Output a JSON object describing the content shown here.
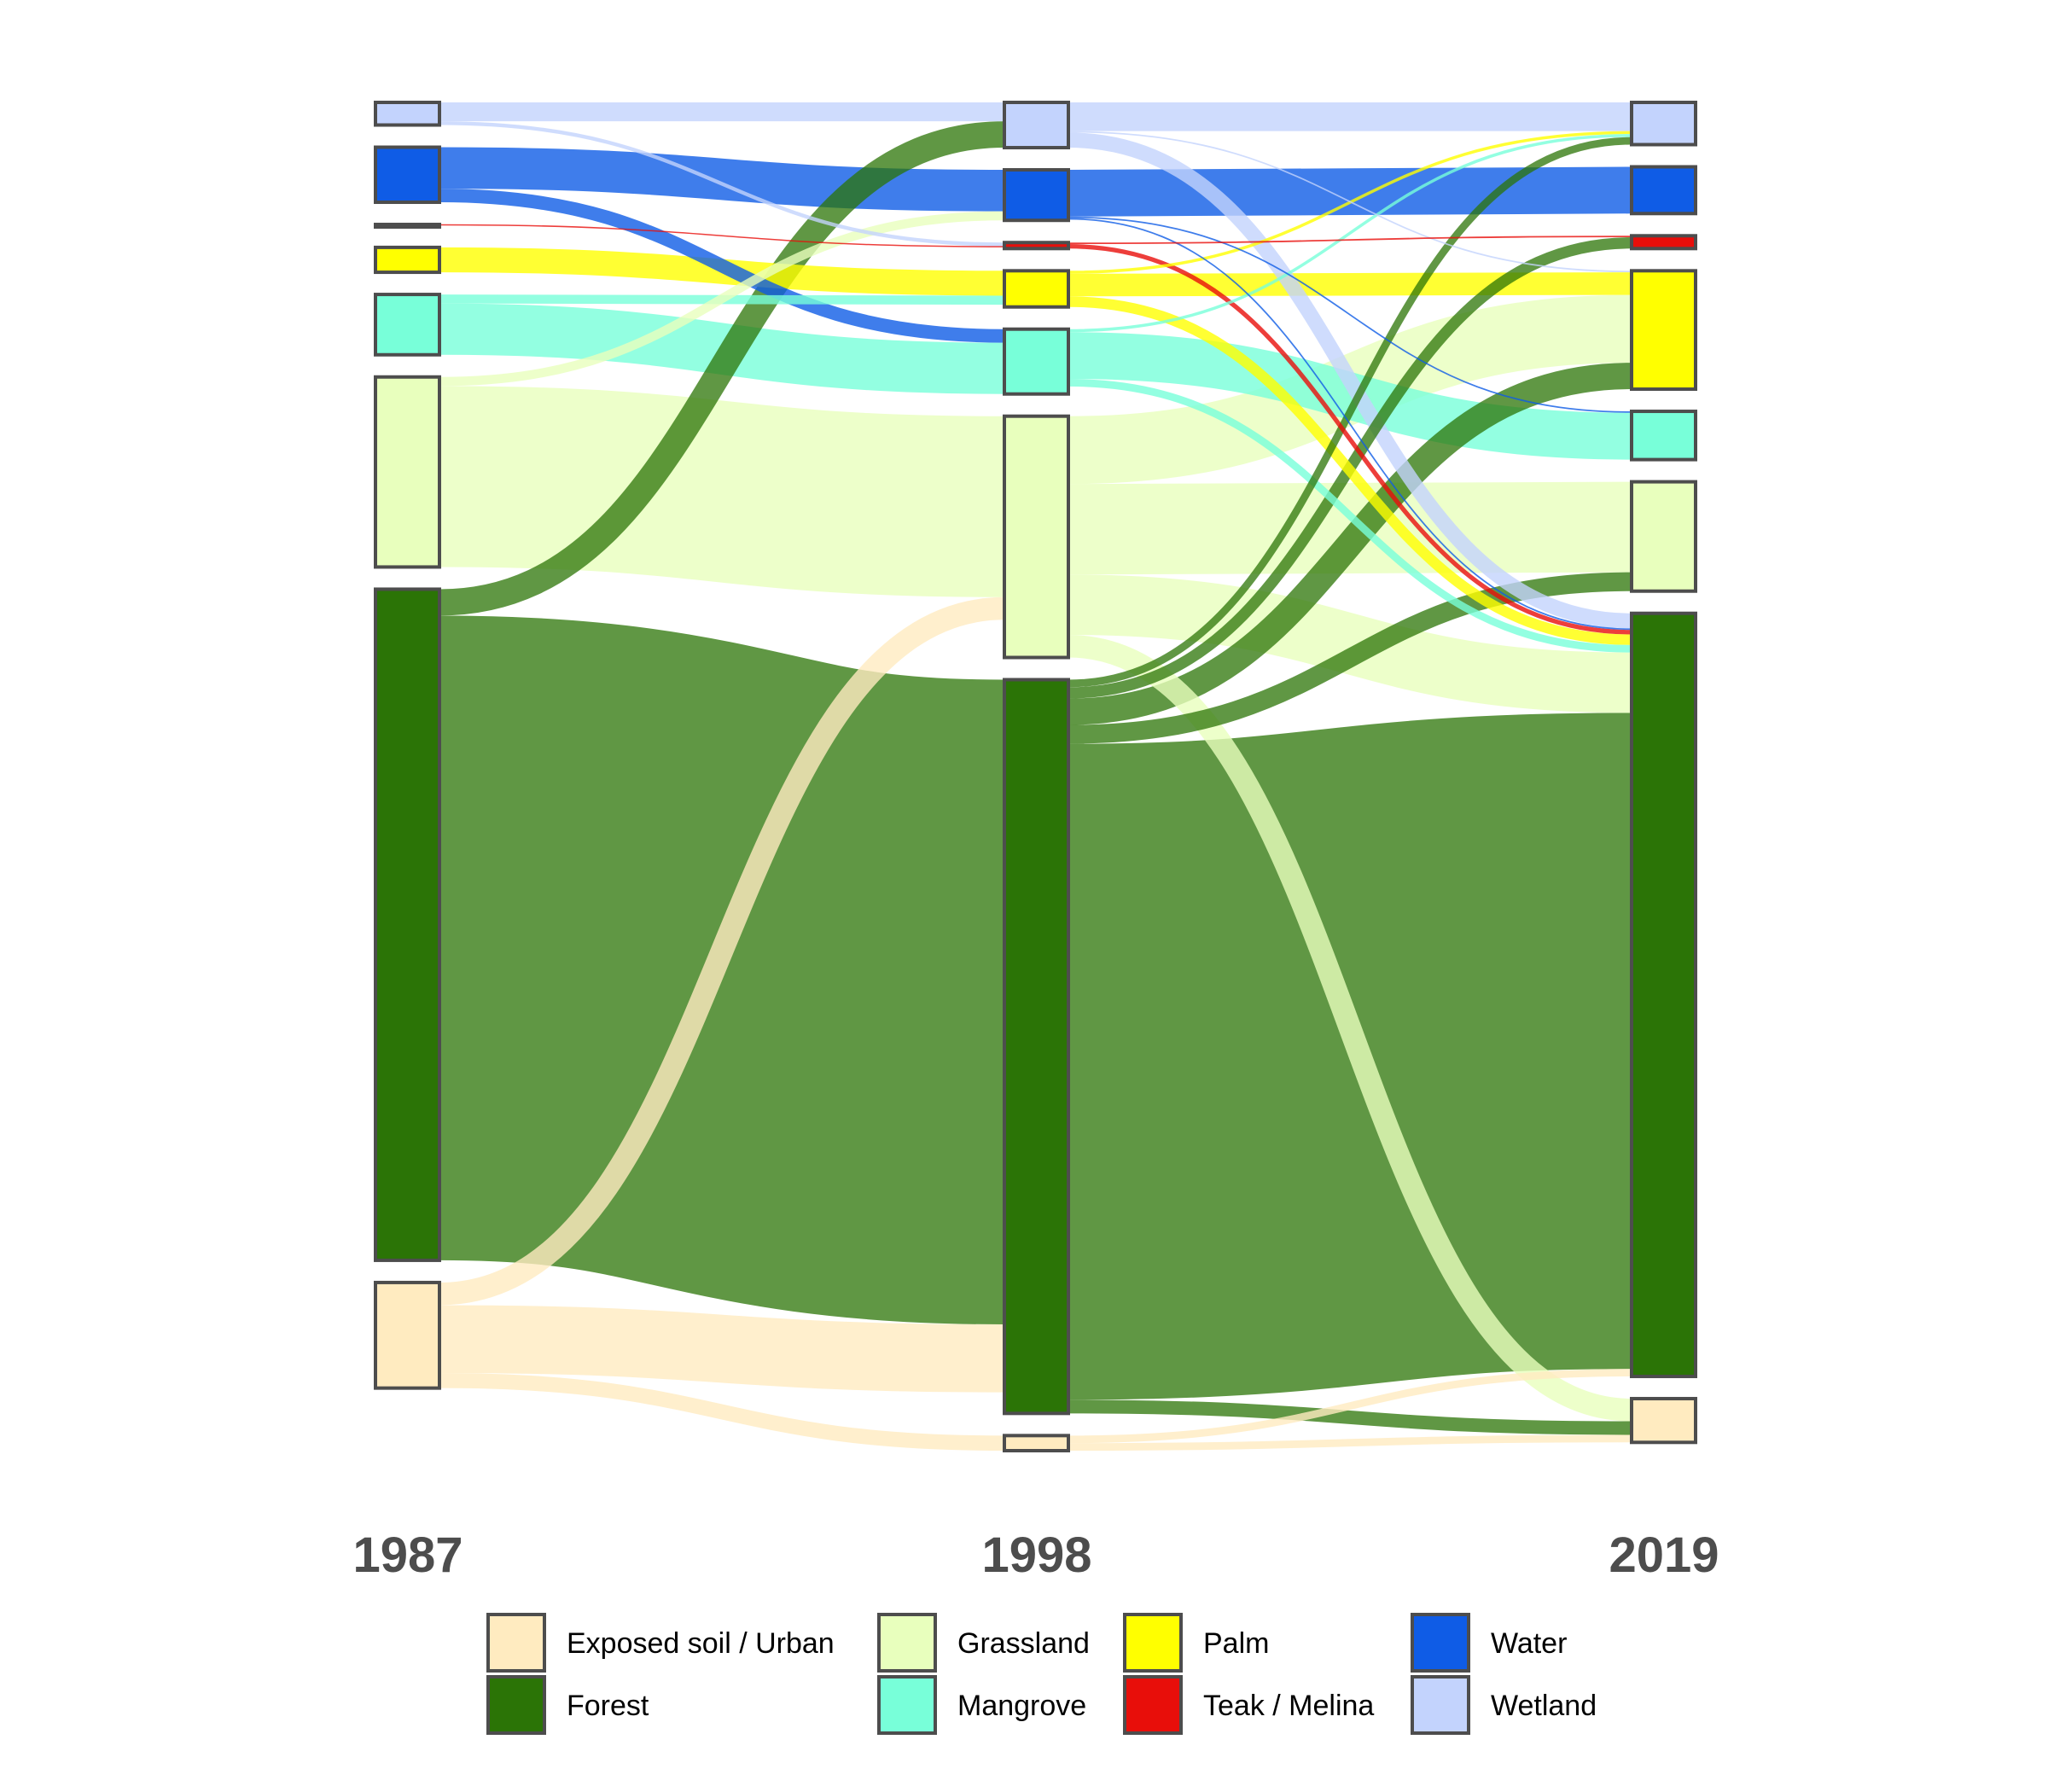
{
  "chart_data": {
    "type": "sankey",
    "title": "",
    "columns": [
      "1987",
      "1998",
      "2019"
    ],
    "categories": [
      {
        "key": "wetland",
        "name": "Wetland",
        "color": "#c3d3fd"
      },
      {
        "key": "water",
        "name": "Water",
        "color": "#0f5ce6"
      },
      {
        "key": "teak",
        "name": "Teak / Melina",
        "color": "#e80e0a"
      },
      {
        "key": "palm",
        "name": "Palm",
        "color": "#ffff00"
      },
      {
        "key": "mangrove",
        "name": "Mangrove",
        "color": "#78ffd9"
      },
      {
        "key": "grassland",
        "name": "Grassland",
        "color": "#e8ffbd"
      },
      {
        "key": "forest",
        "name": "Forest",
        "color": "#2b7406"
      },
      {
        "key": "exposed",
        "name": "Exposed soil / Urban",
        "color": "#ffebc0"
      }
    ],
    "node_order": [
      "wetland",
      "water",
      "teak",
      "palm",
      "mangrove",
      "grassland",
      "forest",
      "exposed"
    ],
    "flows": [
      {
        "period": 0,
        "from": "wetland",
        "to": "wetland",
        "value": 25
      },
      {
        "period": 0,
        "from": "wetland",
        "to": "teak",
        "value": 5
      },
      {
        "period": 0,
        "from": "water",
        "to": "water",
        "value": 55
      },
      {
        "period": 0,
        "from": "water",
        "to": "mangrove",
        "value": 18
      },
      {
        "period": 0,
        "from": "teak",
        "to": "teak",
        "value": 1
      },
      {
        "period": 0,
        "from": "palm",
        "to": "palm",
        "value": 33
      },
      {
        "period": 0,
        "from": "mangrove",
        "to": "mangrove",
        "value": 68
      },
      {
        "period": 0,
        "from": "mangrove",
        "to": "palm",
        "value": 12
      },
      {
        "period": 0,
        "from": "grassland",
        "to": "grassland",
        "value": 240
      },
      {
        "period": 0,
        "from": "grassland",
        "to": "water",
        "value": 12
      },
      {
        "period": 0,
        "from": "forest",
        "to": "forest",
        "value": 855
      },
      {
        "period": 0,
        "from": "forest",
        "to": "wetland",
        "value": 35
      },
      {
        "period": 0,
        "from": "exposed",
        "to": "forest",
        "value": 90
      },
      {
        "period": 0,
        "from": "exposed",
        "to": "grassland",
        "value": 30
      },
      {
        "period": 0,
        "from": "exposed",
        "to": "exposed",
        "value": 20
      },
      {
        "period": 1,
        "from": "wetland",
        "to": "wetland",
        "value": 38
      },
      {
        "period": 1,
        "from": "wetland",
        "to": "forest",
        "value": 20
      },
      {
        "period": 1,
        "from": "wetland",
        "to": "palm",
        "value": 2
      },
      {
        "period": 1,
        "from": "water",
        "to": "water",
        "value": 62
      },
      {
        "period": 1,
        "from": "water",
        "to": "forest",
        "value": 2
      },
      {
        "period": 1,
        "from": "water",
        "to": "mangrove",
        "value": 2
      },
      {
        "period": 1,
        "from": "teak",
        "to": "teak",
        "value": 2
      },
      {
        "period": 1,
        "from": "teak",
        "to": "forest",
        "value": 6
      },
      {
        "period": 1,
        "from": "palm",
        "to": "palm",
        "value": 30
      },
      {
        "period": 1,
        "from": "palm",
        "to": "forest",
        "value": 14
      },
      {
        "period": 1,
        "from": "palm",
        "to": "wetland",
        "value": 4
      },
      {
        "period": 1,
        "from": "mangrove",
        "to": "mangrove",
        "value": 62
      },
      {
        "period": 1,
        "from": "mangrove",
        "to": "forest",
        "value": 10
      },
      {
        "period": 1,
        "from": "mangrove",
        "to": "wetland",
        "value": 4
      },
      {
        "period": 1,
        "from": "grassland",
        "to": "grassland",
        "value": 120
      },
      {
        "period": 1,
        "from": "grassland",
        "to": "palm",
        "value": 90
      },
      {
        "period": 1,
        "from": "grassland",
        "to": "forest",
        "value": 80
      },
      {
        "period": 1,
        "from": "grassland",
        "to": "exposed",
        "value": 30
      },
      {
        "period": 1,
        "from": "forest",
        "to": "forest",
        "value": 870
      },
      {
        "period": 1,
        "from": "forest",
        "to": "palm",
        "value": 35
      },
      {
        "period": 1,
        "from": "forest",
        "to": "grassland",
        "value": 25
      },
      {
        "period": 1,
        "from": "forest",
        "to": "wetland",
        "value": 10
      },
      {
        "period": 1,
        "from": "forest",
        "to": "teak",
        "value": 15
      },
      {
        "period": 1,
        "from": "forest",
        "to": "exposed",
        "value": 18
      },
      {
        "period": 1,
        "from": "exposed",
        "to": "exposed",
        "value": 10
      },
      {
        "period": 1,
        "from": "exposed",
        "to": "forest",
        "value": 10
      }
    ]
  },
  "legend": [
    {
      "name": "Exposed soil / Urban",
      "color": "#ffebc0"
    },
    {
      "name": "Forest",
      "color": "#2b7406"
    },
    {
      "name": "Grassland",
      "color": "#e8ffbd"
    },
    {
      "name": "Mangrove",
      "color": "#78ffd9"
    },
    {
      "name": "Palm",
      "color": "#ffff00"
    },
    {
      "name": "Teak / Melina",
      "color": "#e80e0a"
    },
    {
      "name": "Water",
      "color": "#0f5ce6"
    },
    {
      "name": "Wetland",
      "color": "#c3d3fd"
    }
  ]
}
